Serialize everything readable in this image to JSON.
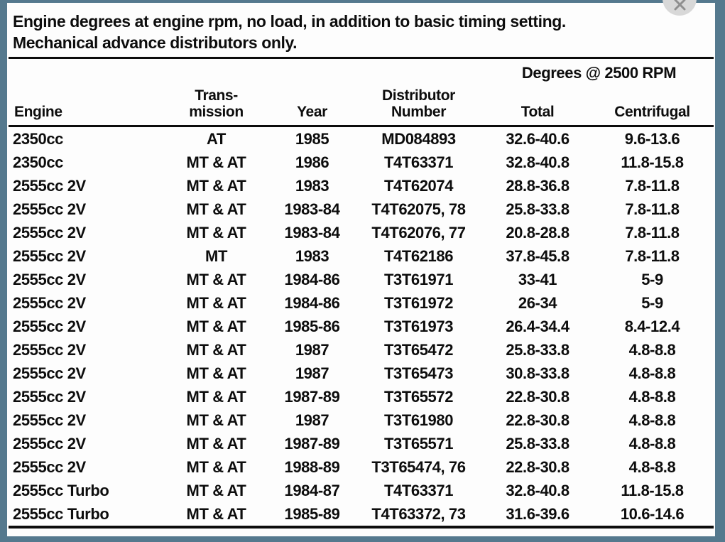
{
  "colors": {
    "frame": "#55798e",
    "page": "#fdfdfd",
    "text": "#0d0d0d",
    "close_circle": "#d8d8d8",
    "close_x": "#8f8f8f"
  },
  "close_button": {
    "label": "close"
  },
  "intro": {
    "line1": "Engine degrees at engine rpm, no load, in addition to basic timing setting.",
    "line2": "Mechanical advance distributors only."
  },
  "table": {
    "group_header": "Degrees @ 2500 RPM",
    "columns": {
      "engine": "Engine",
      "transmission_line1": "Trans-",
      "transmission_line2": "mission",
      "year": "Year",
      "distributor_line1": "Distributor",
      "distributor_line2": "Number",
      "total": "Total",
      "centrifugal": "Centrifugal"
    },
    "rows": [
      {
        "engine": "2350cc",
        "transmission": "AT",
        "year": "1985",
        "distributor": "MD084893",
        "total": "32.6-40.6",
        "centrifugal": "9.6-13.6"
      },
      {
        "engine": "2350cc",
        "transmission": "MT & AT",
        "year": "1986",
        "distributor": "T4T63371",
        "total": "32.8-40.8",
        "centrifugal": "11.8-15.8"
      },
      {
        "engine": "2555cc 2V",
        "transmission": "MT & AT",
        "year": "1983",
        "distributor": "T4T62074",
        "total": "28.8-36.8",
        "centrifugal": "7.8-11.8"
      },
      {
        "engine": "2555cc 2V",
        "transmission": "MT & AT",
        "year": "1983-84",
        "distributor": "T4T62075, 78",
        "total": "25.8-33.8",
        "centrifugal": "7.8-11.8"
      },
      {
        "engine": "2555cc 2V",
        "transmission": "MT & AT",
        "year": "1983-84",
        "distributor": "T4T62076, 77",
        "total": "20.8-28.8",
        "centrifugal": "7.8-11.8"
      },
      {
        "engine": "2555cc 2V",
        "transmission": "MT",
        "year": "1983",
        "distributor": "T4T62186",
        "total": "37.8-45.8",
        "centrifugal": "7.8-11.8"
      },
      {
        "engine": "2555cc 2V",
        "transmission": "MT & AT",
        "year": "1984-86",
        "distributor": "T3T61971",
        "total": "33-41",
        "centrifugal": "5-9"
      },
      {
        "engine": "2555cc 2V",
        "transmission": "MT & AT",
        "year": "1984-86",
        "distributor": "T3T61972",
        "total": "26-34",
        "centrifugal": "5-9"
      },
      {
        "engine": "2555cc 2V",
        "transmission": "MT & AT",
        "year": "1985-86",
        "distributor": "T3T61973",
        "total": "26.4-34.4",
        "centrifugal": "8.4-12.4"
      },
      {
        "engine": "2555cc 2V",
        "transmission": "MT & AT",
        "year": "1987",
        "distributor": "T3T65472",
        "total": "25.8-33.8",
        "centrifugal": "4.8-8.8"
      },
      {
        "engine": "2555cc 2V",
        "transmission": "MT & AT",
        "year": "1987",
        "distributor": "T3T65473",
        "total": "30.8-33.8",
        "centrifugal": "4.8-8.8"
      },
      {
        "engine": "2555cc 2V",
        "transmission": "MT & AT",
        "year": "1987-89",
        "distributor": "T3T65572",
        "total": "22.8-30.8",
        "centrifugal": "4.8-8.8"
      },
      {
        "engine": "2555cc 2V",
        "transmission": "MT & AT",
        "year": "1987",
        "distributor": "T3T61980",
        "total": "22.8-30.8",
        "centrifugal": "4.8-8.8"
      },
      {
        "engine": "2555cc 2V",
        "transmission": "MT & AT",
        "year": "1987-89",
        "distributor": "T3T65571",
        "total": "25.8-33.8",
        "centrifugal": "4.8-8.8"
      },
      {
        "engine": "2555cc 2V",
        "transmission": "MT & AT",
        "year": "1988-89",
        "distributor": "T3T65474, 76",
        "total": "22.8-30.8",
        "centrifugal": "4.8-8.8"
      },
      {
        "engine": "2555cc Turbo",
        "transmission": "MT & AT",
        "year": "1984-87",
        "distributor": "T4T63371",
        "total": "32.8-40.8",
        "centrifugal": "11.8-15.8"
      },
      {
        "engine": "2555cc Turbo",
        "transmission": "MT & AT",
        "year": "1985-89",
        "distributor": "T4T63372, 73",
        "total": "31.6-39.6",
        "centrifugal": "10.6-14.6"
      }
    ]
  }
}
